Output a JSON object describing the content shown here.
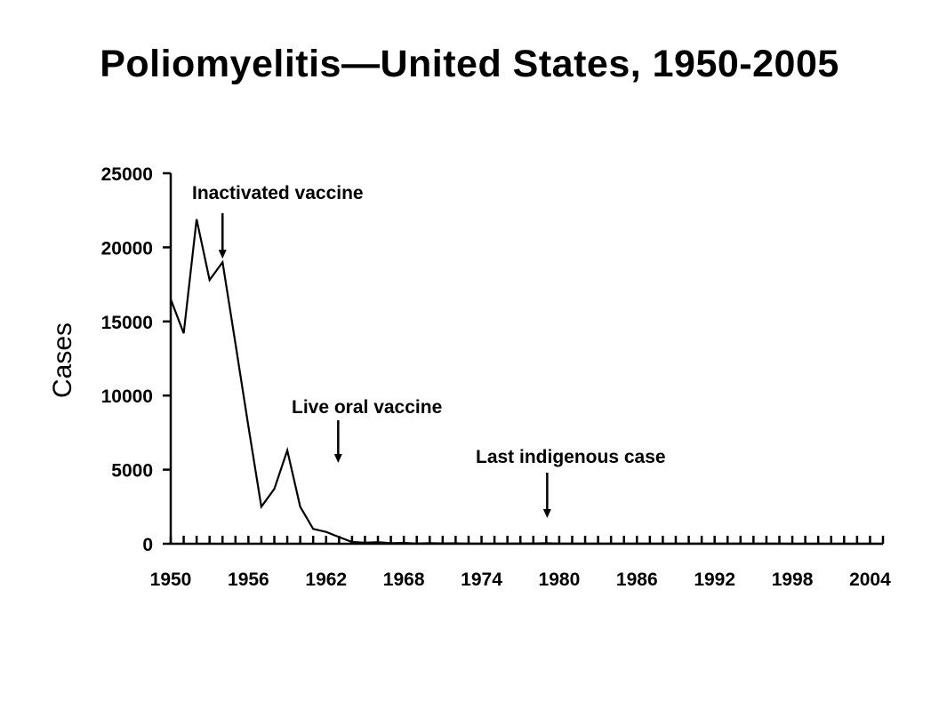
{
  "title": "Poliomyelitis—United States, 1950-2005",
  "chart_data": {
    "type": "line",
    "title": "Poliomyelitis—United States, 1950-2005",
    "xlabel": "",
    "ylabel": "Cases",
    "xlim": [
      1950,
      2005
    ],
    "ylim": [
      0,
      25000
    ],
    "x_ticks": [
      1950,
      1956,
      1962,
      1968,
      1974,
      1980,
      1986,
      1992,
      1998,
      2004
    ],
    "y_ticks": [
      0,
      5000,
      10000,
      15000,
      20000,
      25000
    ],
    "grid": false,
    "legend": "none",
    "series": [
      {
        "x": [
          1950,
          1951,
          1952,
          1953,
          1954,
          1955,
          1956,
          1957,
          1958,
          1959,
          1960,
          1961,
          1962,
          1963,
          1964,
          1965,
          1966,
          1967,
          1968,
          1969,
          1970,
          1971,
          1972,
          1973,
          1974,
          1975,
          1976,
          1977,
          1978,
          1979,
          1980,
          1981,
          1982,
          1983,
          1984,
          1985,
          1986,
          1987,
          1988,
          1989,
          1990,
          1991,
          1992,
          1993,
          1994,
          1995,
          1996,
          1997,
          1998,
          1999,
          2000,
          2001,
          2002,
          2003,
          2004,
          2005
        ],
        "values": [
          16500,
          14200,
          21900,
          17800,
          19000,
          13500,
          7900,
          2500,
          3700,
          6300,
          2500,
          1000,
          800,
          450,
          120,
          70,
          110,
          40,
          55,
          20,
          33,
          21,
          30,
          8,
          7,
          13,
          10,
          18,
          15,
          34,
          9,
          10,
          12,
          13,
          8,
          7,
          10,
          9,
          9,
          11,
          6,
          9,
          6,
          4,
          8,
          7,
          5,
          3,
          1,
          2,
          1,
          0,
          0,
          0,
          0,
          1
        ]
      }
    ],
    "annotations": [
      {
        "text": "Inactivated vaccine",
        "x": 1954,
        "y": 19000
      },
      {
        "text": "Live oral vaccine",
        "x": 1963,
        "y": 500
      },
      {
        "text": "Last indigenous case",
        "x": 1979,
        "y": 0
      }
    ]
  }
}
